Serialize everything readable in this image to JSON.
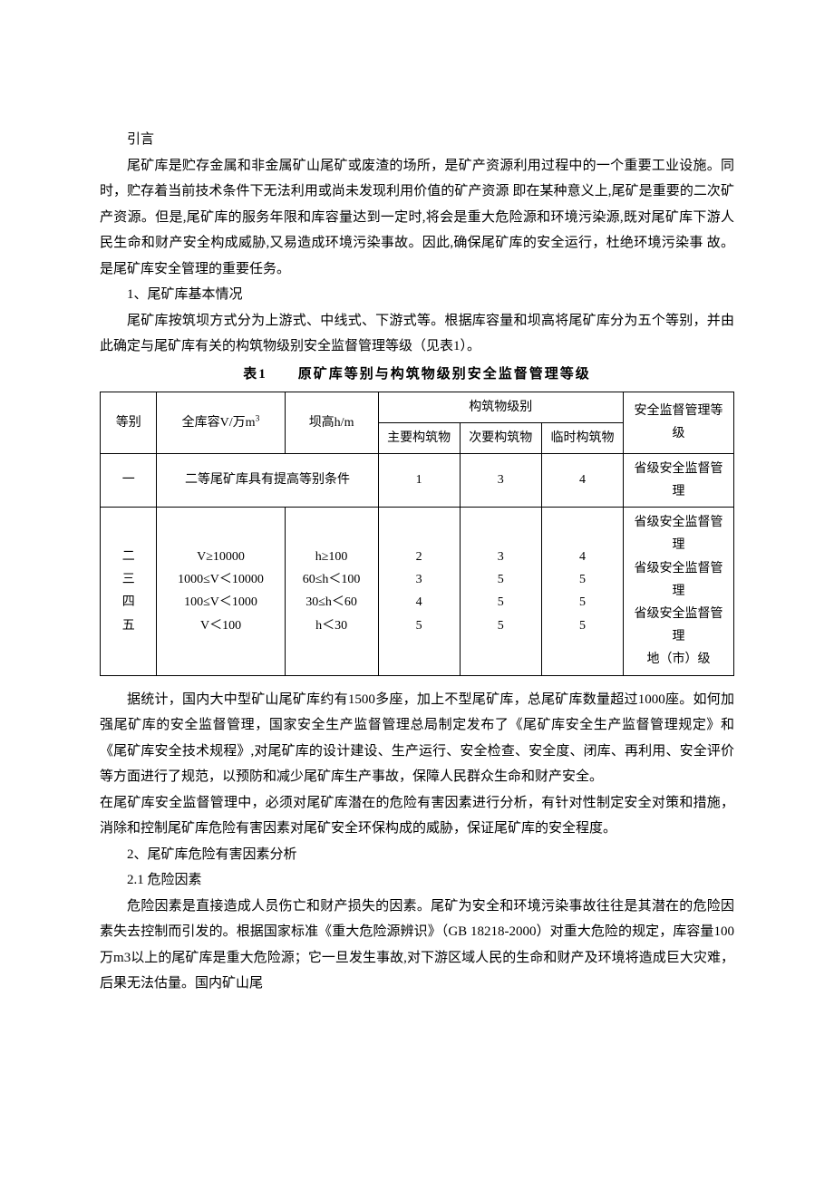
{
  "intro": {
    "h": "引言",
    "p1": "尾矿库是贮存金属和非金属矿山尾矿或废渣的场所，是矿产资源利用过程中的一个重要工业设施。同时，贮存着当前技术条件下无法利用或尚未发现利用价值的矿产资源 即在某种意义上,尾矿是重要的二次矿产资源。但是,尾矿库的服务年限和库容量达到一定时,将会是重大危险源和环境污染源,既对尾矿库下游人民生命和财产安全构成威胁,又易造成环境污染事故。因此,确保尾矿库的安全运行，杜绝环境污染事 故。是尾矿库安全管理的重要任务。"
  },
  "s1": {
    "h": "1、尾矿库基本情况",
    "p1": "尾矿库按筑坝方式分为上游式、中线式、下游式等。根据库容量和坝高将尾矿库分为五个等别，并由此确定与尾矿库有关的构筑物级别安全监督管理等级（见表1）。"
  },
  "table": {
    "title": "表1　　原矿库等别与构筑物级别安全监督管理等级",
    "head": {
      "grade": "等别",
      "capacity": "全库容V/万㎡",
      "dam": "坝高h/m",
      "structGroup": "构筑物级别",
      "main": "主要构筑物",
      "secondary": "次要构筑物",
      "temp": "临时构筑物",
      "supervise": "安全监督管理等级"
    },
    "row1": {
      "grade": "一",
      "cond": "二等尾矿库具有提高等别条件",
      "c3": "1",
      "c4": "3",
      "c5": "4",
      "c6": "省级安全监督管理"
    },
    "row2": {
      "grade": "二\n三\n四\n五",
      "capacity": "V≥10000\n1000≤V＜10000\n100≤V＜1000\nV＜100",
      "dam": "h≥100\n60≤h＜100\n30≤h＜60\nh＜30",
      "c3": "2\n3\n4\n5",
      "c4": "3\n5\n5\n5",
      "c5": "4\n5\n5\n5",
      "c6": "省级安全监督管理\n省级安全监督管理\n省级安全监督管理\n地（市）级"
    }
  },
  "afterTable": {
    "p1": "据统计，国内大中型矿山尾矿库约有1500多座，加上不型尾矿库，总尾矿库数量超过1000座。如何加强尾矿库的安全监督管理，国家安全生产监督管理总局制定发布了《尾矿库安全生产监督管理规定》和《尾矿库安全技术规程》,对尾矿库的设计建设、生产运行、安全检查、安全度、闭库、再利用、安全评价等方面进行了规范，以预防和减少尾矿库生产事故，保障人民群众生命和财产安全。",
    "p2": "在尾矿库安全监督管理中，必须对尾矿库潜在的危险有害因素进行分析，有针对性制定安全对策和措施，消除和控制尾矿库危险有害因素对尾矿安全环保构成的威胁，保证尾矿库的安全程度。"
  },
  "s2": {
    "h": "2、尾矿库危险有害因素分析",
    "h21": "2.1 危险因素",
    "p1": "危险因素是直接造成人员伤亡和财产损失的因素。尾矿为安全和环境污染事故往往是其潜在的危险因素失去控制而引发的。根据国家标准《重大危险源辨识》（GB 18218-2000）对重大危险的规定，库容量100万m3以上的尾矿库是重大危险源；它一旦发生事故,对下游区域人民的生命和财产及环境将造成巨大灾难，后果无法估量。国内矿山尾"
  }
}
